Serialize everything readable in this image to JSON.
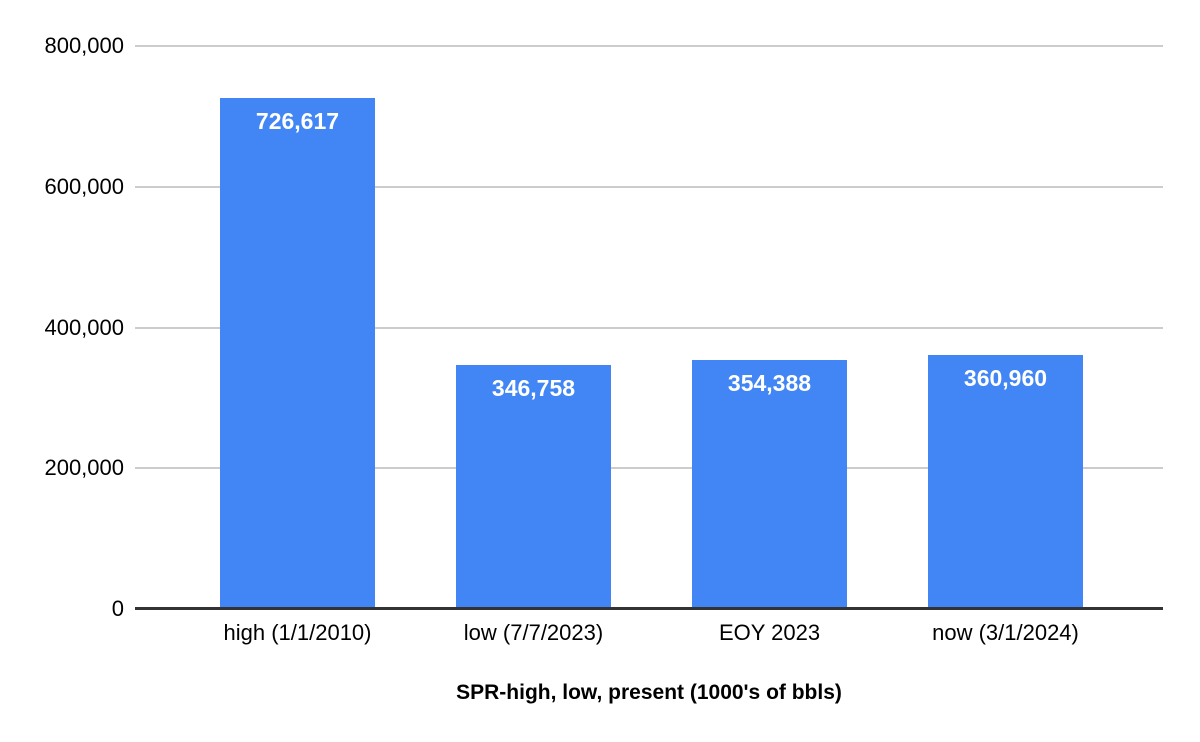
{
  "chart_data": {
    "type": "bar",
    "categories": [
      "high (1/1/2010)",
      "low (7/7/2023)",
      "EOY 2023",
      "now (3/1/2024)"
    ],
    "values": [
      726617,
      346758,
      354388,
      360960
    ],
    "value_labels": [
      "726,617",
      "346,758",
      "354,388",
      "360,960"
    ],
    "xlabel": "SPR-high, low, present (1000's of bbls)",
    "ylabel": "",
    "title": "",
    "ylim": [
      0,
      800000
    ],
    "yticks": [
      0,
      200000,
      400000,
      600000,
      800000
    ],
    "ytick_labels": [
      "0",
      "200,000",
      "400,000",
      "600,000",
      "800,000"
    ],
    "grid": true,
    "legend_position": "none",
    "colors": {
      "bar": "#4285f4",
      "gridline": "#cccccc",
      "axis_line": "#333333",
      "tick_text": "#000000",
      "value_label_text": "#ffffff"
    }
  }
}
